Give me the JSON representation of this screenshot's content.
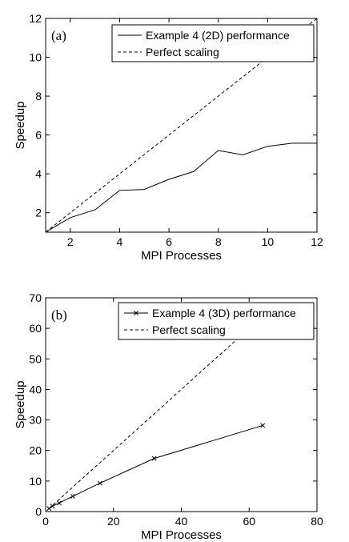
{
  "chart_data": [
    {
      "type": "line",
      "panel_label": "(a)",
      "xlabel": "MPI Processes",
      "ylabel": "Speedup",
      "xlim": [
        1,
        12
      ],
      "ylim": [
        1,
        12
      ],
      "xticks": [
        2,
        4,
        6,
        8,
        10,
        12
      ],
      "yticks": [
        2,
        4,
        6,
        8,
        10,
        12
      ],
      "grid": false,
      "legend_position": "top-right",
      "series": [
        {
          "name": "Example 4 (2D) performance",
          "style": "solid",
          "marker": "none",
          "x": [
            1,
            2,
            3,
            4,
            5,
            6,
            7,
            8,
            9,
            10,
            11,
            12
          ],
          "y": [
            1.0,
            1.75,
            2.15,
            3.15,
            3.2,
            3.72,
            4.12,
            5.2,
            4.98,
            5.42,
            5.58,
            5.58
          ]
        },
        {
          "name": "Perfect scaling",
          "style": "dashed",
          "marker": "none",
          "x": [
            1,
            12
          ],
          "y": [
            1,
            12
          ]
        }
      ]
    },
    {
      "type": "line",
      "panel_label": "(b)",
      "xlabel": "MPI Processes",
      "ylabel": "Speedup",
      "xlim": [
        0,
        80
      ],
      "ylim": [
        0,
        70
      ],
      "xticks": [
        0,
        20,
        40,
        60,
        80
      ],
      "yticks": [
        0,
        10,
        20,
        30,
        40,
        50,
        60,
        70
      ],
      "grid": false,
      "legend_position": "top-right",
      "series": [
        {
          "name": "Example 4 (3D) performance",
          "style": "solid",
          "marker": "x",
          "x": [
            1,
            2,
            4,
            8,
            16,
            32,
            64
          ],
          "y": [
            1,
            1.8,
            2.8,
            5.0,
            9.3,
            17.4,
            28.2
          ]
        },
        {
          "name": "Perfect scaling",
          "style": "dashed",
          "marker": "none",
          "x": [
            1,
            64
          ],
          "y": [
            1,
            64
          ]
        }
      ]
    }
  ]
}
